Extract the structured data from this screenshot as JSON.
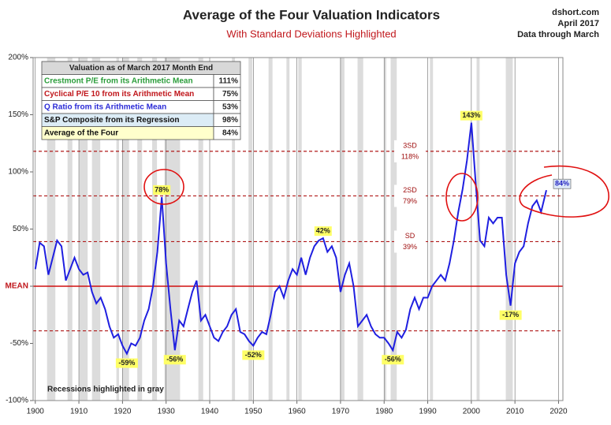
{
  "chart_data": {
    "type": "line",
    "title": "Average of the Four Valuation Indicators",
    "subtitle": "With Standard Deviations Highlighted",
    "source": [
      "dshort.com",
      "April 2017",
      "Data through March"
    ],
    "note": "Recessions highlighted in gray",
    "color": "#1f1fe0",
    "x": [
      1900,
      1901,
      1902,
      1903,
      1904,
      1905,
      1906,
      1907,
      1908,
      1909,
      1910,
      1911,
      1912,
      1913,
      1914,
      1915,
      1916,
      1917,
      1918,
      1919,
      1920,
      1921,
      1922,
      1923,
      1924,
      1925,
      1926,
      1927,
      1928,
      1929,
      1930,
      1931,
      1932,
      1933,
      1934,
      1935,
      1936,
      1937,
      1938,
      1939,
      1940,
      1941,
      1942,
      1943,
      1944,
      1945,
      1946,
      1947,
      1948,
      1949,
      1950,
      1951,
      1952,
      1953,
      1954,
      1955,
      1956,
      1957,
      1958,
      1959,
      1960,
      1961,
      1962,
      1963,
      1964,
      1965,
      1966,
      1967,
      1968,
      1969,
      1970,
      1971,
      1972,
      1973,
      1974,
      1975,
      1976,
      1977,
      1978,
      1979,
      1980,
      1981,
      1982,
      1983,
      1984,
      1985,
      1986,
      1987,
      1988,
      1989,
      1990,
      1991,
      1992,
      1993,
      1994,
      1995,
      1996,
      1997,
      1998,
      1999,
      2000,
      2001,
      2002,
      2003,
      2004,
      2005,
      2006,
      2007,
      2008,
      2009,
      2010,
      2011,
      2012,
      2013,
      2014,
      2015,
      2016,
      2017.2
    ],
    "values": [
      15,
      38,
      35,
      10,
      25,
      40,
      35,
      5,
      15,
      25,
      15,
      10,
      12,
      -5,
      -15,
      -10,
      -20,
      -35,
      -45,
      -42,
      -52,
      -59,
      -50,
      -52,
      -45,
      -30,
      -20,
      0,
      30,
      78,
      20,
      -20,
      -56,
      -30,
      -35,
      -20,
      -5,
      5,
      -30,
      -25,
      -35,
      -45,
      -48,
      -40,
      -35,
      -25,
      -20,
      -40,
      -42,
      -48,
      -52,
      -45,
      -40,
      -42,
      -25,
      -5,
      0,
      -10,
      5,
      15,
      10,
      25,
      10,
      25,
      35,
      40,
      42,
      30,
      35,
      25,
      -5,
      10,
      20,
      0,
      -35,
      -30,
      -25,
      -35,
      -42,
      -45,
      -45,
      -50,
      -56,
      -40,
      -45,
      -38,
      -20,
      -10,
      -20,
      -10,
      -10,
      0,
      5,
      10,
      5,
      20,
      40,
      65,
      85,
      110,
      143,
      90,
      40,
      35,
      60,
      55,
      60,
      60,
      10,
      -17,
      20,
      30,
      35,
      55,
      70,
      75,
      65,
      84
    ],
    "xlim": [
      1899.5,
      2021
    ],
    "xticks": [
      1900,
      1910,
      1920,
      1930,
      1940,
      1950,
      1960,
      1970,
      1980,
      1990,
      2000,
      2010,
      2020
    ],
    "ylim": [
      -100,
      200
    ],
    "yticks": [
      {
        "value": -100,
        "label": "-100%"
      },
      {
        "value": -50,
        "label": "-50%"
      },
      {
        "value": 0,
        "label": "MEAN"
      },
      {
        "value": 50,
        "label": "50%"
      },
      {
        "value": 100,
        "label": "100%"
      },
      {
        "value": 150,
        "label": "150%"
      },
      {
        "value": 200,
        "label": "200%"
      }
    ],
    "reference_lines": [
      {
        "name": "3SD",
        "value": 118,
        "label": "118%"
      },
      {
        "name": "2SD",
        "value": 79,
        "label": "79%"
      },
      {
        "name": "SD",
        "value": 39,
        "label": "39%"
      },
      {
        "value": -39
      }
    ],
    "recessions": [
      [
        1902.7,
        1904.6
      ],
      [
        1907.4,
        1908.5
      ],
      [
        1910.1,
        1912
      ],
      [
        1913,
        1914.9
      ],
      [
        1918.6,
        1919.2
      ],
      [
        1920,
        1921.5
      ],
      [
        1923.4,
        1924.5
      ],
      [
        1926.8,
        1927.9
      ],
      [
        1929.6,
        1933.2
      ],
      [
        1937.4,
        1938.5
      ],
      [
        1945.1,
        1945.8
      ],
      [
        1948.9,
        1949.8
      ],
      [
        1953.5,
        1954.4
      ],
      [
        1957.6,
        1958.3
      ],
      [
        1960.3,
        1961.1
      ],
      [
        1969.9,
        1970.9
      ],
      [
        1973.9,
        1975.2
      ],
      [
        1980,
        1980.5
      ],
      [
        1981.5,
        1982.9
      ],
      [
        1990.5,
        1991.2
      ],
      [
        2001.2,
        2001.9
      ],
      [
        2007.9,
        2009.5
      ]
    ],
    "annotations": [
      {
        "x": 1929,
        "y": 78,
        "label": "78%"
      },
      {
        "x": 1921,
        "y": -59,
        "label": "-59%"
      },
      {
        "x": 1932,
        "y": -56,
        "label": "-56%"
      },
      {
        "x": 1950,
        "y": -52,
        "label": "-52%"
      },
      {
        "x": 1966,
        "y": 42,
        "label": "42%"
      },
      {
        "x": 1982,
        "y": -56,
        "label": "-56%"
      },
      {
        "x": 2000,
        "y": 143,
        "label": "143%"
      },
      {
        "x": 2009,
        "y": -17,
        "label": "-17%"
      },
      {
        "x": 2017.2,
        "y": 84,
        "label": "84%"
      }
    ]
  },
  "table": {
    "title": "Valuation as of March 2017 Month End",
    "rows": [
      {
        "name": "Crestmont P/E from its Arithmetic Mean",
        "value": "111%",
        "color": "#2a9d3a",
        "bg": "#ffffff"
      },
      {
        "name": "Cyclical P/E 10 from its Arithmetic Mean",
        "value": "75%",
        "color": "#c0161b",
        "bg": "#ffffff"
      },
      {
        "name": "Q Ratio from its Arithmetic Mean",
        "value": "53%",
        "color": "#2b2bd6",
        "bg": "#ffffff"
      },
      {
        "name": "S&P Composite from its Regression",
        "value": "98%",
        "color": "#111111",
        "bg": "#dcecf6"
      },
      {
        "name": "Average of the Four",
        "value": "84%",
        "color": "#111111",
        "bg": "#ffffcc"
      }
    ]
  }
}
